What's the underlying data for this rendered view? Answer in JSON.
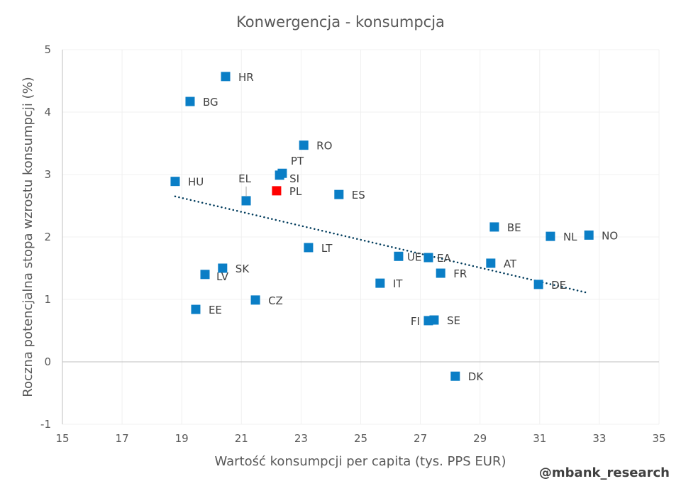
{
  "chart_data": {
    "type": "scatter",
    "title": "Konwergencja - konsumpcja",
    "xlabel": "Wartość konsumpcji per capita (tys. PPS EUR)",
    "ylabel": "Roczna potencjalna stopa wzrostu konsumpcji (%)",
    "xlim": [
      15,
      35
    ],
    "ylim": [
      -1,
      5
    ],
    "xticks": [
      15,
      17,
      19,
      21,
      23,
      25,
      27,
      29,
      31,
      33,
      35
    ],
    "yticks": [
      -1,
      0,
      1,
      2,
      3,
      4,
      5
    ],
    "grid": true,
    "legend": "none",
    "colors": {
      "point": "#0a7ec6",
      "highlight": "#ff0000",
      "trend": "#003b5c"
    },
    "points": [
      {
        "label": "HR",
        "x": 20.47,
        "y": 4.57
      },
      {
        "label": "BG",
        "x": 19.28,
        "y": 4.17
      },
      {
        "label": "RO",
        "x": 23.09,
        "y": 3.47
      },
      {
        "label": "PT",
        "x": 22.37,
        "y": 3.02
      },
      {
        "label": "SI",
        "x": 22.28,
        "y": 2.99
      },
      {
        "label": "PL",
        "x": 22.18,
        "y": 2.74,
        "highlight": true
      },
      {
        "label": "ES",
        "x": 24.27,
        "y": 2.68
      },
      {
        "label": "HU",
        "x": 18.78,
        "y": 2.89
      },
      {
        "label": "EL",
        "x": 21.16,
        "y": 2.58
      },
      {
        "label": "BE",
        "x": 29.48,
        "y": 2.16
      },
      {
        "label": "NL",
        "x": 31.36,
        "y": 2.01
      },
      {
        "label": "NO",
        "x": 32.65,
        "y": 2.03
      },
      {
        "label": "LT",
        "x": 23.25,
        "y": 1.83
      },
      {
        "label": "UE",
        "x": 26.27,
        "y": 1.69
      },
      {
        "label": "EA",
        "x": 27.27,
        "y": 1.67
      },
      {
        "label": "AT",
        "x": 29.36,
        "y": 1.58
      },
      {
        "label": "SK",
        "x": 20.37,
        "y": 1.5
      },
      {
        "label": "LV",
        "x": 19.78,
        "y": 1.4
      },
      {
        "label": "FR",
        "x": 27.68,
        "y": 1.42
      },
      {
        "label": "IT",
        "x": 25.65,
        "y": 1.26
      },
      {
        "label": "DE",
        "x": 30.96,
        "y": 1.24
      },
      {
        "label": "CZ",
        "x": 21.47,
        "y": 0.99
      },
      {
        "label": "EE",
        "x": 19.47,
        "y": 0.84
      },
      {
        "label": "FI",
        "x": 27.27,
        "y": 0.66
      },
      {
        "label": "SE",
        "x": 27.46,
        "y": 0.67
      },
      {
        "label": "DK",
        "x": 28.17,
        "y": -0.23
      }
    ],
    "trendline": {
      "type": "linear",
      "x": [
        18.78,
        32.65
      ],
      "y": [
        2.65,
        1.1
      ]
    }
  },
  "watermark": "@mbank_research"
}
